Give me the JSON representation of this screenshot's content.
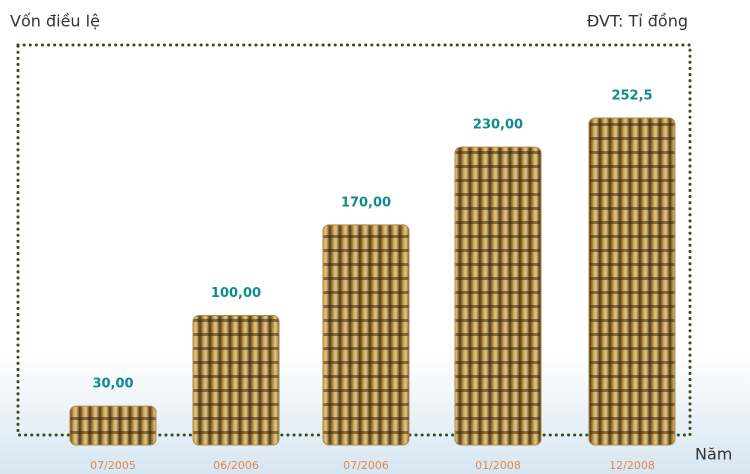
{
  "chart_data": {
    "type": "bar",
    "title": "Vốn điều lệ",
    "unit_label": "ĐVT: Tỉ đồng",
    "x_label": "Năm",
    "categories": [
      "07/2005",
      "06/2006",
      "07/2006",
      "01/2008",
      "12/2008"
    ],
    "values": [
      30,
      100,
      170,
      230,
      252.5
    ],
    "value_labels": [
      "30,00",
      "100,00",
      "170,00",
      "230,00",
      "252,5"
    ],
    "color": "#b08a3e"
  }
}
